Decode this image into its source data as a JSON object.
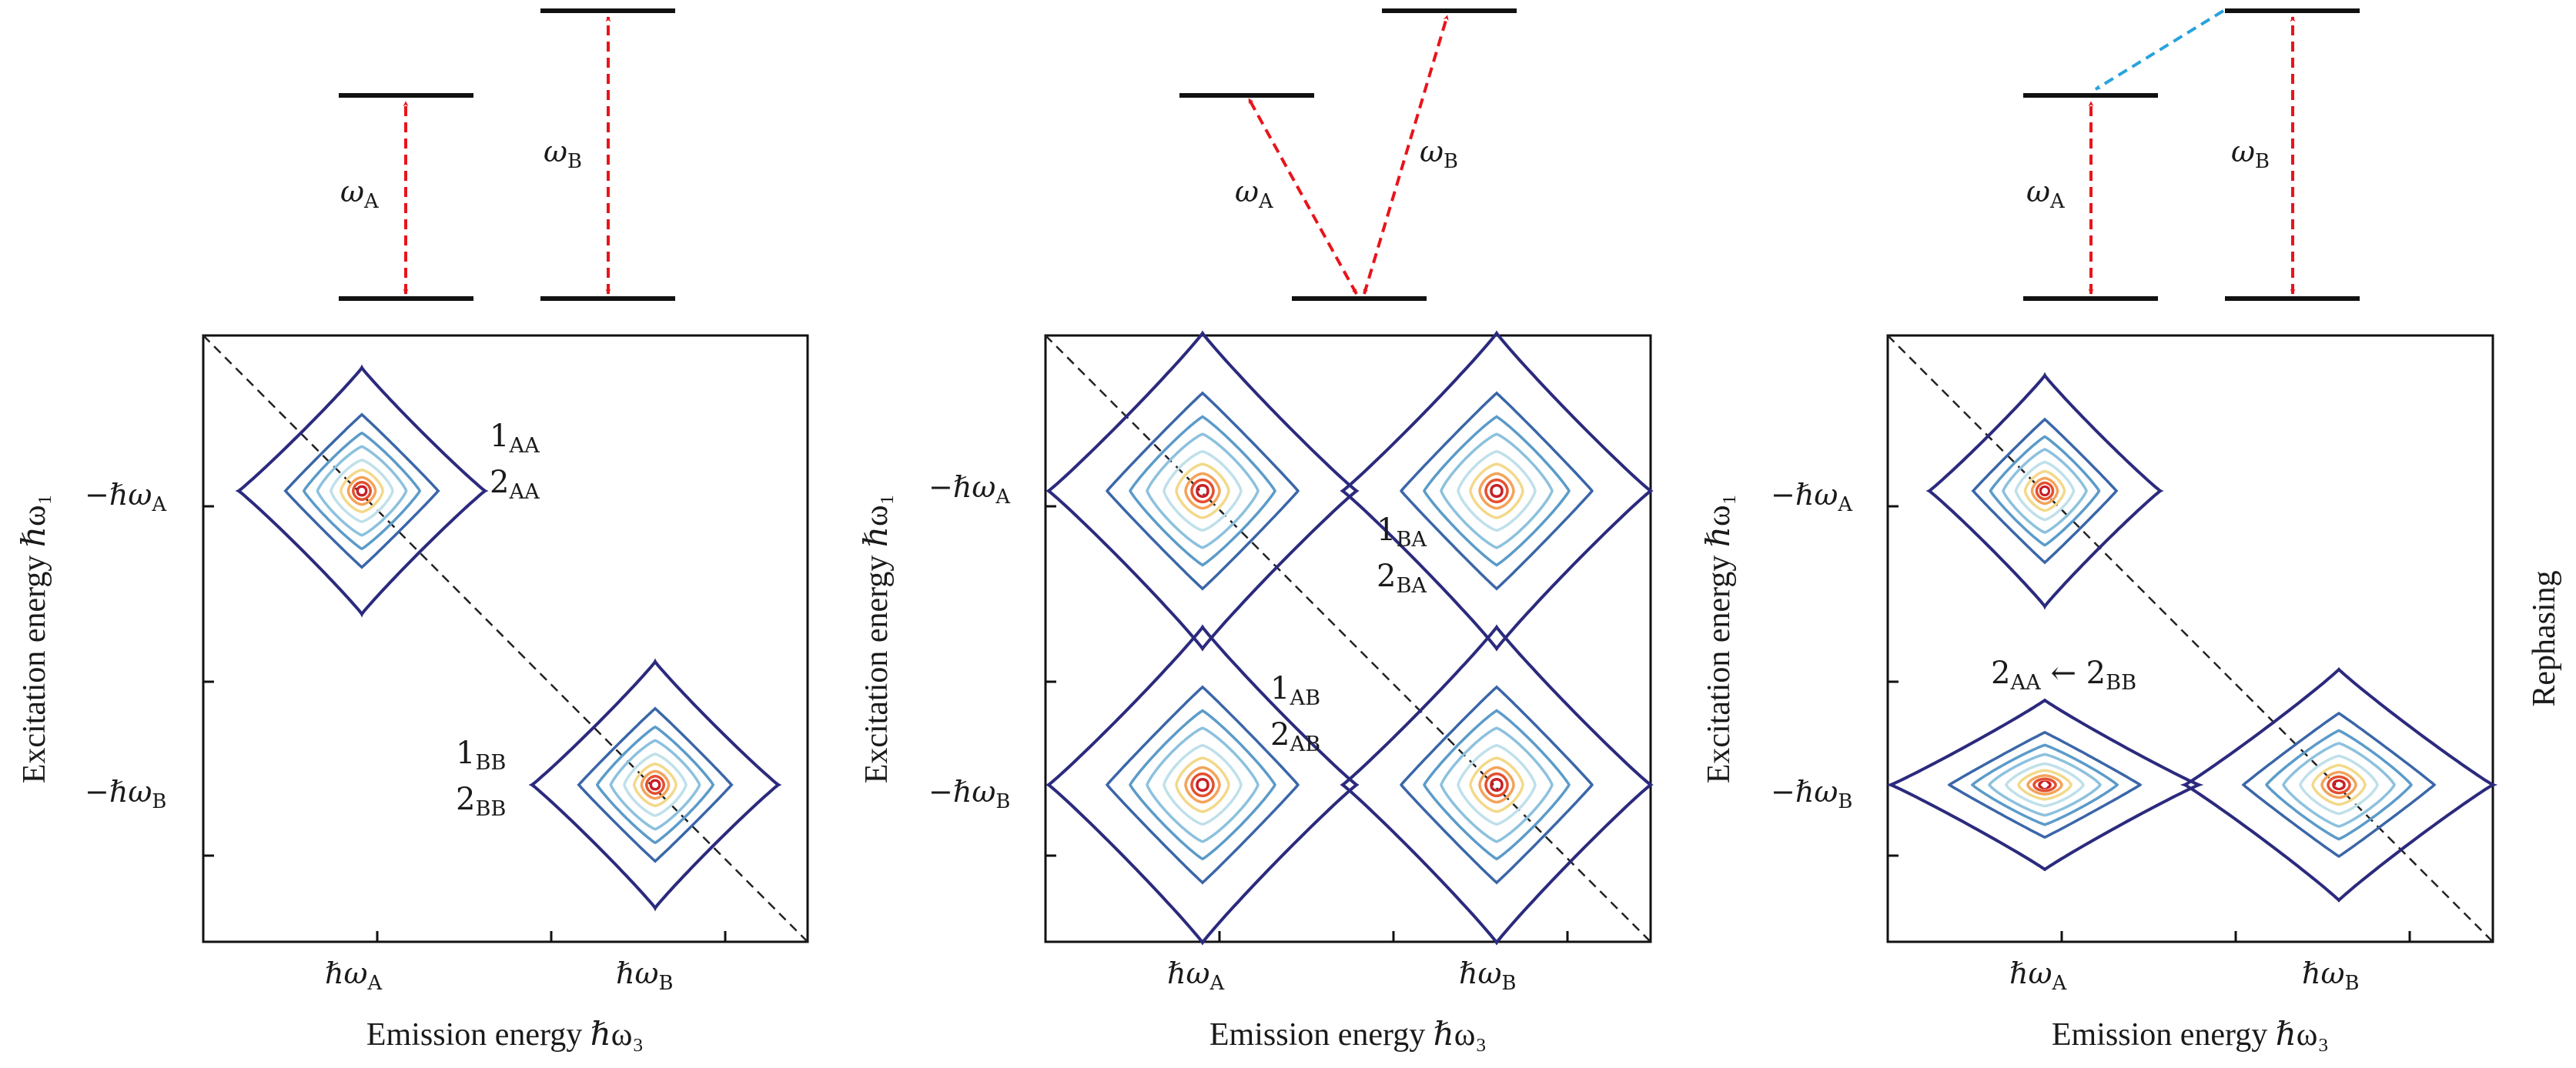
{
  "figure": {
    "side_label": "Rephasing",
    "panels": [
      {
        "name": "panel-1",
        "xlabel": "Emission energy ℏω₃",
        "ylabel": "Excitation energy ℏω₁",
        "xticks": [
          "ℏω_A",
          "ℏω_B"
        ],
        "yticks": [
          "−ℏω_A",
          "−ℏω_B"
        ],
        "level_labels": [
          "ω_A",
          "ω_B"
        ],
        "transitions": "direct",
        "peak_labels": [
          {
            "lines": [
              "1_AA",
              "2_AA"
            ]
          },
          {
            "lines": [
              "1_BB",
              "2_BB"
            ]
          }
        ]
      },
      {
        "name": "panel-2",
        "xlabel": "Emission energy ℏω₃",
        "ylabel": "Excitation energy ℏω₁",
        "xticks": [
          "ℏω_A",
          "ℏω_B"
        ],
        "yticks": [
          "−ℏω_A",
          "−ℏω_B"
        ],
        "level_labels": [
          "ω_A",
          "ω_B"
        ],
        "transitions": "shared-ground",
        "peak_labels": [
          {
            "lines": [
              "1_BA",
              "2_BA"
            ]
          },
          {
            "lines": [
              "1_AB",
              "2_AB"
            ]
          }
        ]
      },
      {
        "name": "panel-3",
        "xlabel": "Emission energy ℏω₃",
        "ylabel": "Excitation energy ℏω₁",
        "xticks": [
          "ℏω_A",
          "ℏω_B"
        ],
        "yticks": [
          "−ℏω_A",
          "−ℏω_B"
        ],
        "level_labels": [
          "ω_A",
          "ω_B"
        ],
        "transitions": "energy-transfer",
        "peak_labels": [
          {
            "lines": [
              "2_AA ← 2_BB"
            ]
          }
        ]
      }
    ]
  },
  "colors": {
    "arrow": "#e8141b",
    "transfer_arrow": "#29a3dc",
    "level": "#111111",
    "contours": [
      "#2b2a7d",
      "#3a66a8",
      "#5b9bc9",
      "#8cc1de",
      "#bfe0ea",
      "#f2d98a",
      "#f3a35a",
      "#e4502f",
      "#c81f27"
    ]
  }
}
